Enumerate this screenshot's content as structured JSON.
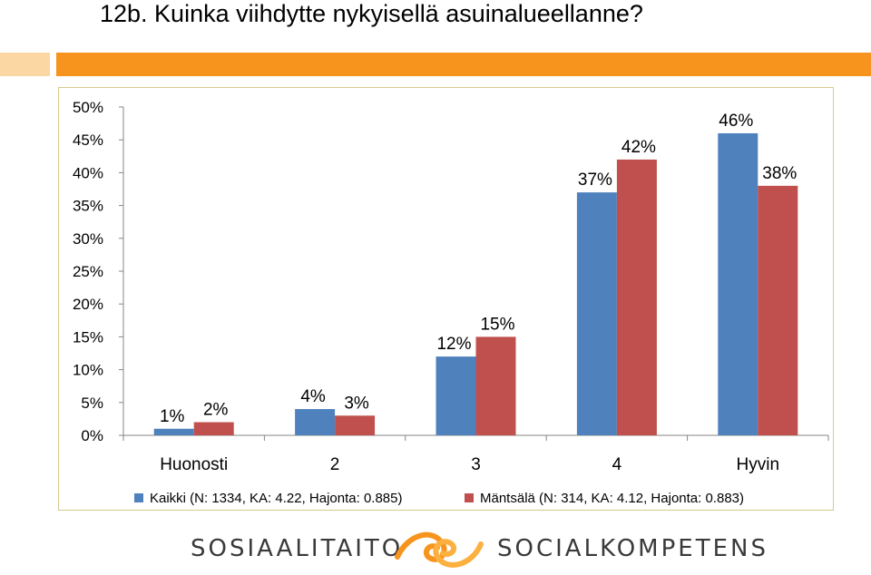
{
  "slide": {
    "title": "12b. Kuinka viihdytte nykyisellä asuinalueellanne?"
  },
  "chart_data": {
    "type": "bar",
    "title": "",
    "xlabel": "",
    "ylabel": "",
    "ylim": [
      0,
      50
    ],
    "ytick_labels": [
      "0%",
      "5%",
      "10%",
      "15%",
      "20%",
      "25%",
      "30%",
      "35%",
      "40%",
      "45%",
      "50%"
    ],
    "categories": [
      "Huonosti",
      "2",
      "3",
      "4",
      "Hyvin"
    ],
    "series": [
      {
        "name": "Kaikki (N: 1334, KA: 4.22, Hajonta: 0.885)",
        "color": "#4f81bd",
        "values": [
          1,
          4,
          12,
          37,
          46
        ],
        "labels": [
          "1%",
          "4%",
          "12%",
          "37%",
          "46%"
        ]
      },
      {
        "name": "Mäntsälä (N: 314, KA: 4.12, Hajonta: 0.883)",
        "color": "#c0504d",
        "values": [
          2,
          3,
          15,
          42,
          38
        ],
        "labels": [
          "2%",
          "3%",
          "15%",
          "42%",
          "38%"
        ]
      }
    ],
    "legend_position": "bottom",
    "grid": false
  },
  "footer": {
    "left_brand": "SOSIAALITAITO",
    "right_brand": "SOCIALKOMPETENS",
    "logo_colors": [
      "#f7941d",
      "#fbb040"
    ]
  }
}
